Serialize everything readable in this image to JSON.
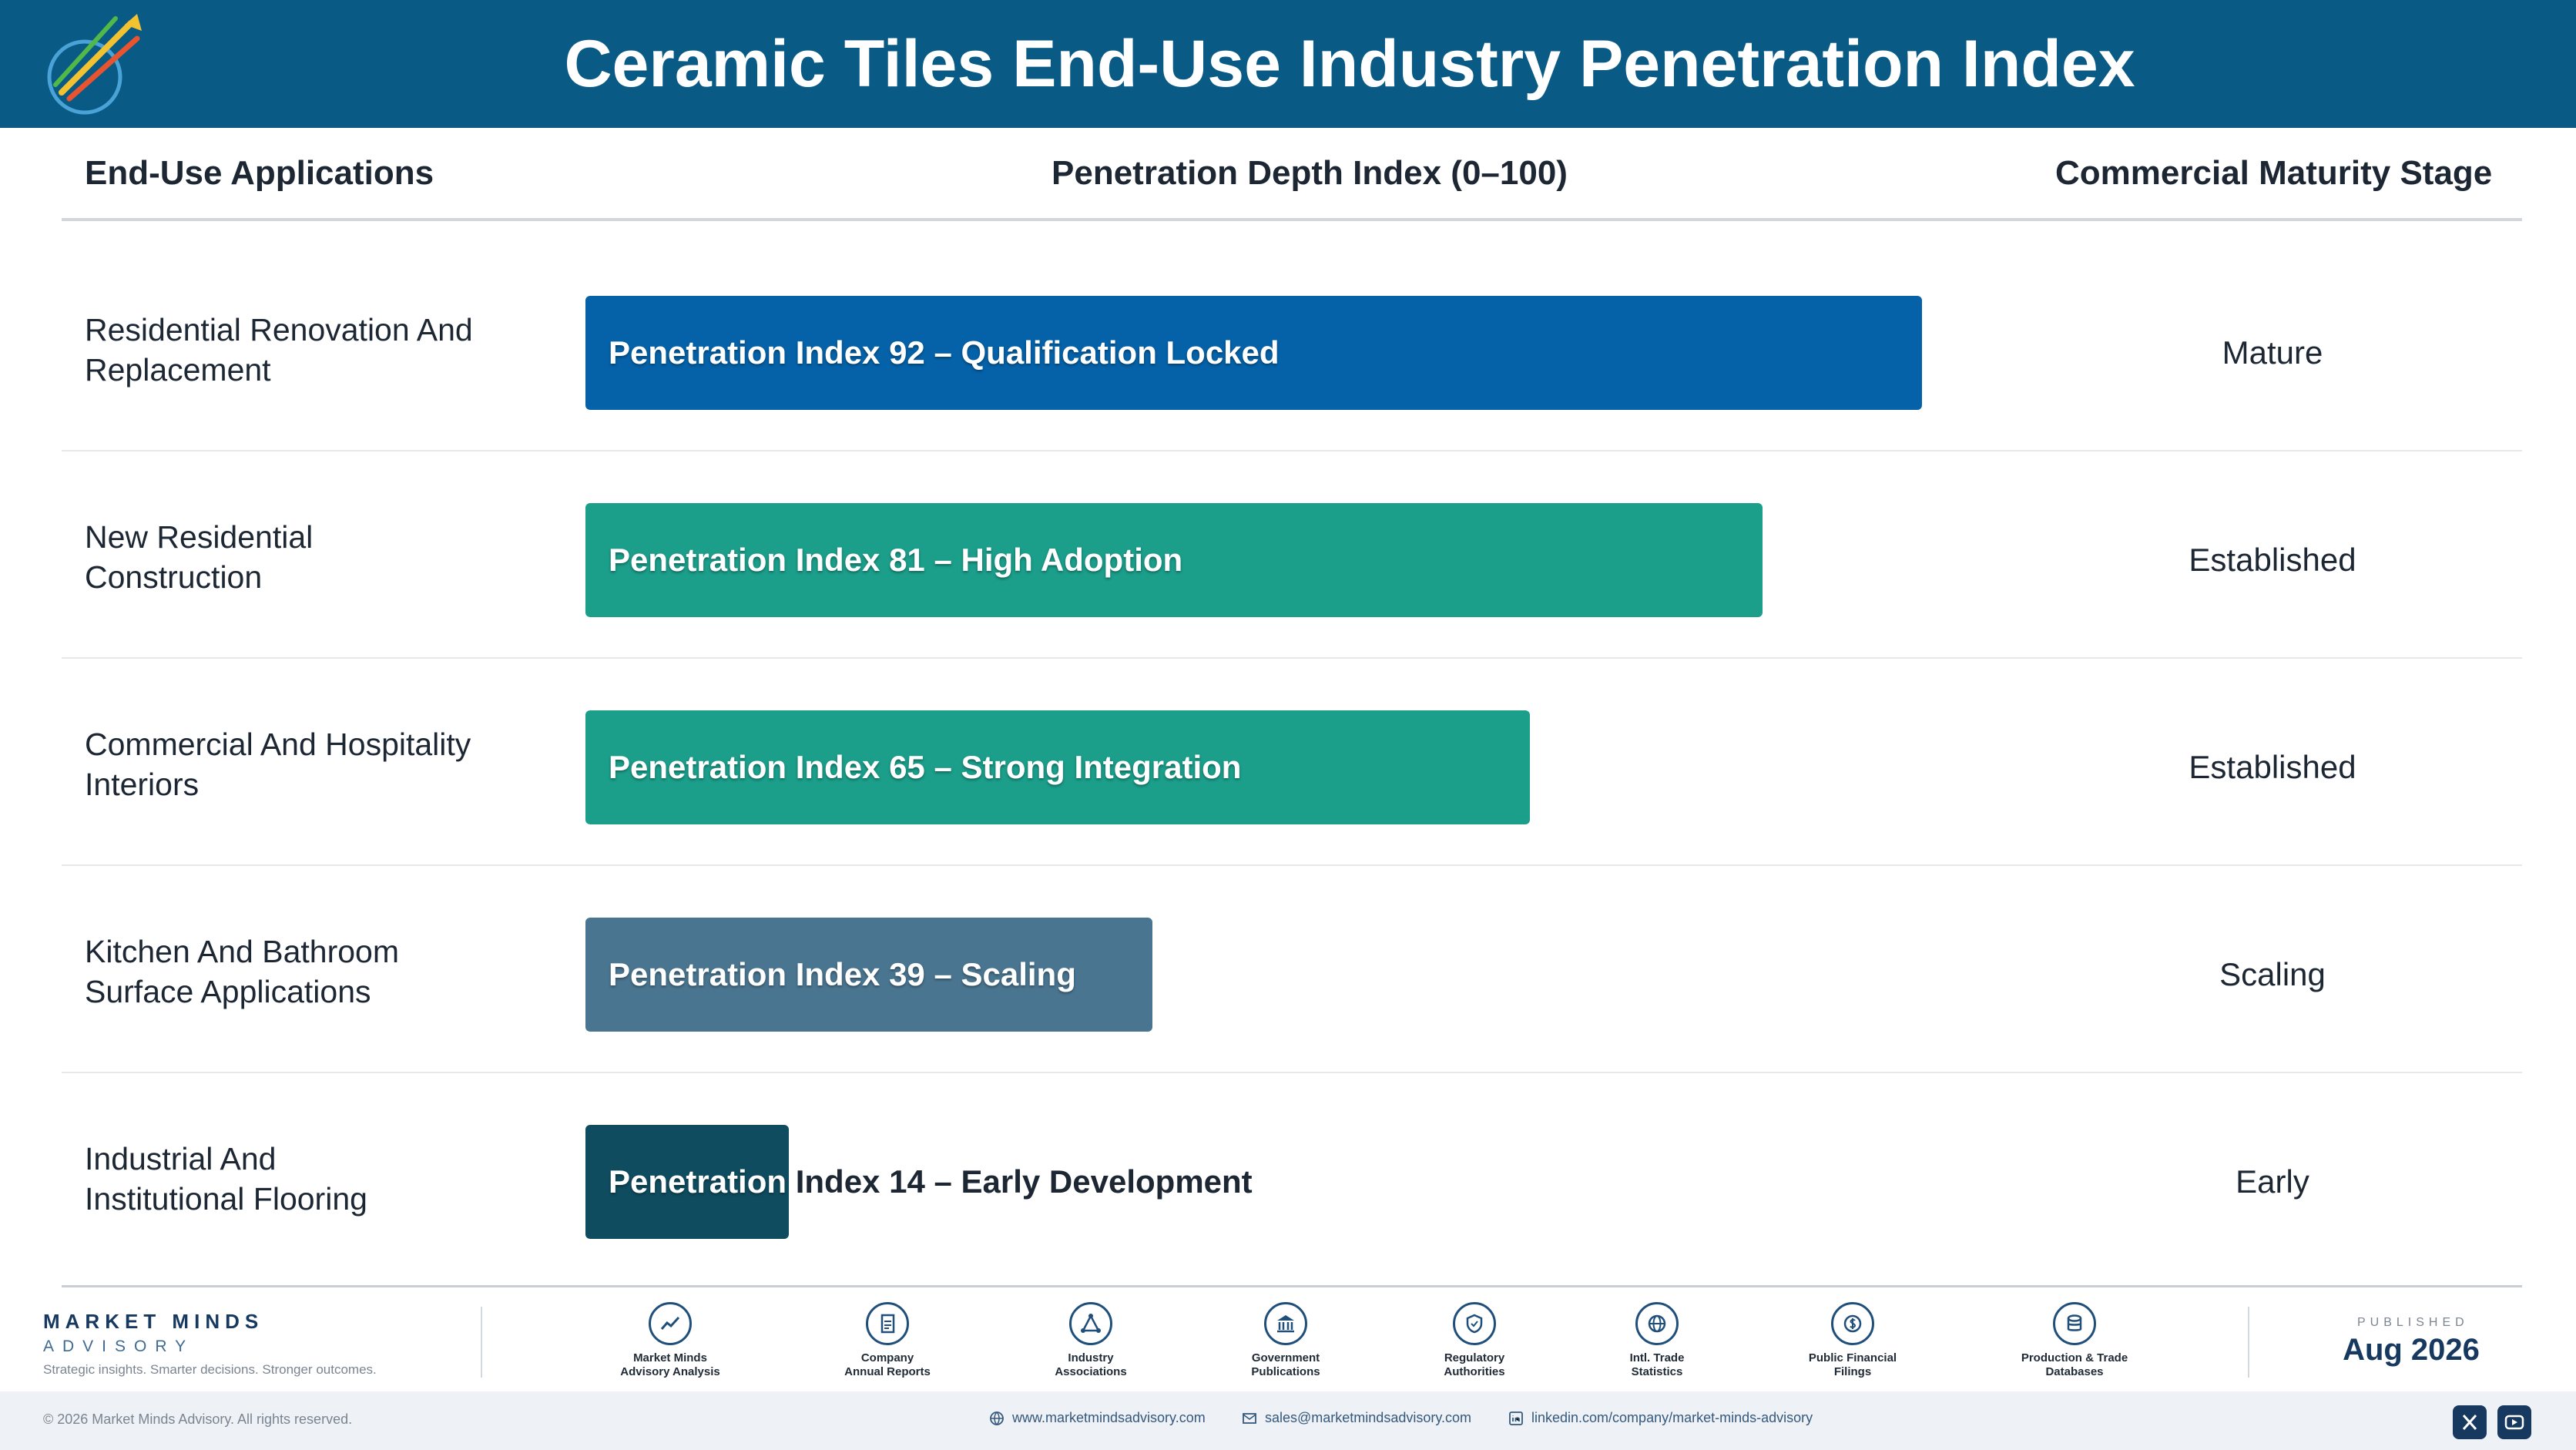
{
  "header": {
    "title": "Ceramic Tiles End-Use Industry Penetration Index"
  },
  "columns": {
    "applications": "End-Use Applications",
    "index": "Penetration Depth Index (0–100)",
    "stage": "Commercial Maturity Stage"
  },
  "colors": {
    "header_bg": "#0a5a86",
    "bar_92": "#0562a8",
    "bar_81": "#1b9e8a",
    "bar_65": "#1b9e8a",
    "bar_39": "#4a7590",
    "bar_14": "#0f4c5f"
  },
  "chart_data": {
    "type": "bar",
    "orientation": "horizontal",
    "title": "Ceramic Tiles End-Use Industry Penetration Index",
    "xlabel": "Penetration Depth Index (0–100)",
    "ylabel": "End-Use Applications",
    "xlim": [
      0,
      100
    ],
    "grid": false,
    "categories": [
      "Residential Renovation And Replacement",
      "New Residential Construction",
      "Commercial And Hospitality Interiors",
      "Kitchen And Bathroom Surface Applications",
      "Industrial And Institutional Flooring"
    ],
    "values": [
      92,
      81,
      65,
      39,
      14
    ],
    "bar_labels": [
      "Penetration Index 92 – Qualification Locked",
      "Penetration Index 81 – High Adoption",
      "Penetration Index 65 – Strong Integration",
      "Penetration Index 39 – Scaling",
      "Penetration Index 14 – Early Development"
    ],
    "stages": [
      "Mature",
      "Established",
      "Established",
      "Scaling",
      "Early"
    ]
  },
  "rows": [
    {
      "label_line1": "Residential Renovation And",
      "label_line2": "Replacement"
    },
    {
      "label_line1": "New Residential",
      "label_line2": "Construction"
    },
    {
      "label_line1": "Commercial And Hospitality",
      "label_line2": "Interiors"
    },
    {
      "label_line1": "Kitchen And Bathroom",
      "label_line2": "Surface Applications"
    },
    {
      "label_line1": "Industrial And",
      "label_line2": "Institutional Flooring"
    }
  ],
  "footer": {
    "brand_name": "MARKET MINDS",
    "brand_sub": "ADVISORY",
    "tagline": "Strategic insights. Smarter decisions. Stronger outcomes.",
    "sources": [
      {
        "line1": "Market Minds",
        "line2": "Advisory Analysis",
        "icon": "chart-line-icon"
      },
      {
        "line1": "Company",
        "line2": "Annual Reports",
        "icon": "document-icon"
      },
      {
        "line1": "Industry",
        "line2": "Associations",
        "icon": "network-icon"
      },
      {
        "line1": "Government",
        "line2": "Publications",
        "icon": "building-icon"
      },
      {
        "line1": "Regulatory",
        "line2": "Authorities",
        "icon": "shield-icon"
      },
      {
        "line1": "Intl. Trade",
        "line2": "Statistics",
        "icon": "globe-icon"
      },
      {
        "line1": "Public Financial",
        "line2": "Filings",
        "icon": "coin-icon"
      },
      {
        "line1": "Production & Trade",
        "line2": "Databases",
        "icon": "database-icon"
      }
    ],
    "published_label": "PUBLISHED",
    "published_date": "Aug 2026",
    "copyright": "© 2026 Market Minds Advisory. All rights reserved.",
    "website": "www.marketmindsadvisory.com",
    "email": "sales@marketmindsadvisory.com",
    "linkedin": "linkedin.com/company/market-minds-advisory"
  }
}
